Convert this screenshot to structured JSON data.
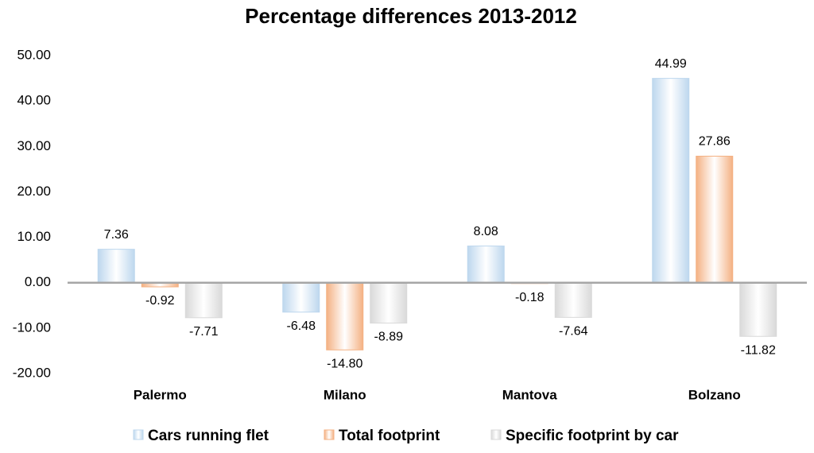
{
  "chart_data": {
    "type": "bar",
    "title": "Percentage differences 2013-2012",
    "categories": [
      "Palermo",
      "Milano",
      "Mantova",
      "Bolzano"
    ],
    "series": [
      {
        "name": "Cars running flet",
        "color": "#bdd7ee",
        "values": [
          7.36,
          -6.48,
          8.08,
          44.99
        ],
        "value_labels": [
          "7.36",
          "-6.48",
          "8.08",
          "44.99"
        ]
      },
      {
        "name": "Total footprint",
        "color": "#f4b183",
        "values": [
          -0.92,
          -14.8,
          -0.18,
          27.86
        ],
        "value_labels": [
          "-0.92",
          "-14.80",
          "-0.18",
          "27.86"
        ]
      },
      {
        "name": "Specific footprint by car",
        "color": "#d9d9d9",
        "values": [
          -7.71,
          -8.89,
          -7.64,
          -11.82
        ],
        "value_labels": [
          "-7.71",
          "-8.89",
          "-7.64",
          "-11.82"
        ]
      }
    ],
    "ylim": [
      -20,
      50
    ],
    "yticks": [
      {
        "value": -20,
        "label": "-20.00"
      },
      {
        "value": -10,
        "label": "-10.00"
      },
      {
        "value": 0,
        "label": "0.00"
      },
      {
        "value": 10,
        "label": "10.00"
      },
      {
        "value": 20,
        "label": "20.00"
      },
      {
        "value": 30,
        "label": "30.00"
      },
      {
        "value": 40,
        "label": "40.00"
      },
      {
        "value": 50,
        "label": "50.00"
      }
    ],
    "grid": false
  }
}
